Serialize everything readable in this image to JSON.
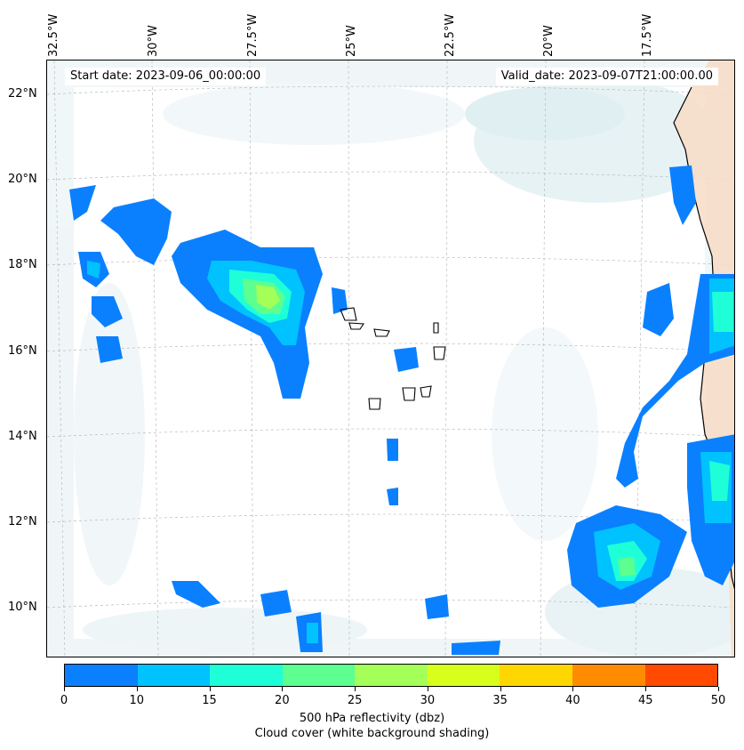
{
  "map": {
    "start_date": "Start date: 2023-09-06_00:00:00",
    "valid_date": "Valid_date: 2023-09-07T21:00:00.00",
    "lon_labels": [
      "32.5°W",
      "30°W",
      "27.5°W",
      "25°W",
      "22.5°W",
      "20°W",
      "17.5°W"
    ],
    "lat_labels": [
      "22°N",
      "20°N",
      "18°N",
      "16°N",
      "14°N",
      "12°N",
      "10°N"
    ]
  },
  "colorbar": {
    "ticks": [
      "0",
      "10",
      "15",
      "20",
      "25",
      "30",
      "35",
      "40",
      "45",
      "50"
    ],
    "colors": [
      "#0a80ff",
      "#00c2ff",
      "#1effd8",
      "#5cff90",
      "#a4ff58",
      "#d8ff1c",
      "#ffd700",
      "#ff8c00",
      "#ff4a00"
    ],
    "label": "500 hPa reflectivity (dbz)",
    "sublabel": "Cloud cover (white background shading)"
  },
  "style": {
    "cloud_color": "#d4e8ee",
    "land_color": "#f7dcc6",
    "coastline_color": "#000000"
  }
}
